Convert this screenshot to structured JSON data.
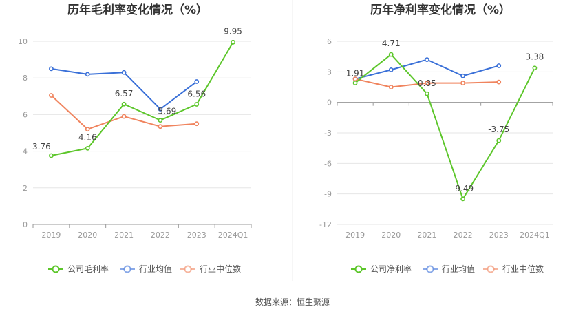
{
  "footer": {
    "source": "数据来源：恒生聚源"
  },
  "chart_data": [
    {
      "type": "line",
      "title": "历年毛利率变化情况（%）",
      "categories": [
        "2019",
        "2020",
        "2021",
        "2022",
        "2023",
        "2024Q1"
      ],
      "ylim": [
        0,
        10
      ],
      "yticks": [
        0,
        2,
        4,
        6,
        8,
        10
      ],
      "grid": true,
      "legend_position": "bottom",
      "series": [
        {
          "name": "公司毛利率",
          "color": "#5cc62a",
          "values": [
            3.76,
            4.16,
            6.57,
            5.69,
            6.56,
            9.95
          ],
          "labels": [
            "3.76",
            "4.16",
            "6.57",
            "5.69",
            "6.56",
            "9.95"
          ]
        },
        {
          "name": "行业均值",
          "color": "#3a70d8",
          "values": [
            8.5,
            8.2,
            8.3,
            6.3,
            7.8,
            null
          ]
        },
        {
          "name": "行业中位数",
          "color": "#f0845e",
          "values": [
            7.05,
            5.2,
            5.9,
            5.35,
            5.5,
            null
          ]
        }
      ]
    },
    {
      "type": "line",
      "title": "历年净利率变化情况（%）",
      "categories": [
        "2019",
        "2020",
        "2021",
        "2022",
        "2023",
        "2024Q1"
      ],
      "ylim": [
        -12,
        6
      ],
      "yticks": [
        -12,
        -9,
        -6,
        -3,
        0,
        3,
        6
      ],
      "grid": true,
      "legend_position": "bottom",
      "series": [
        {
          "name": "公司净利率",
          "color": "#5cc62a",
          "values": [
            1.91,
            4.71,
            0.85,
            -9.49,
            -3.75,
            3.38
          ],
          "labels": [
            "1.91",
            "4.71",
            "0.85",
            "-9.49",
            "-3.75",
            "3.38"
          ]
        },
        {
          "name": "行业均值",
          "color": "#3a70d8",
          "values": [
            2.3,
            3.2,
            4.2,
            2.6,
            3.6,
            null
          ]
        },
        {
          "name": "行业中位数",
          "color": "#f0845e",
          "values": [
            2.3,
            1.5,
            1.9,
            1.9,
            2.0,
            null
          ]
        }
      ]
    }
  ]
}
